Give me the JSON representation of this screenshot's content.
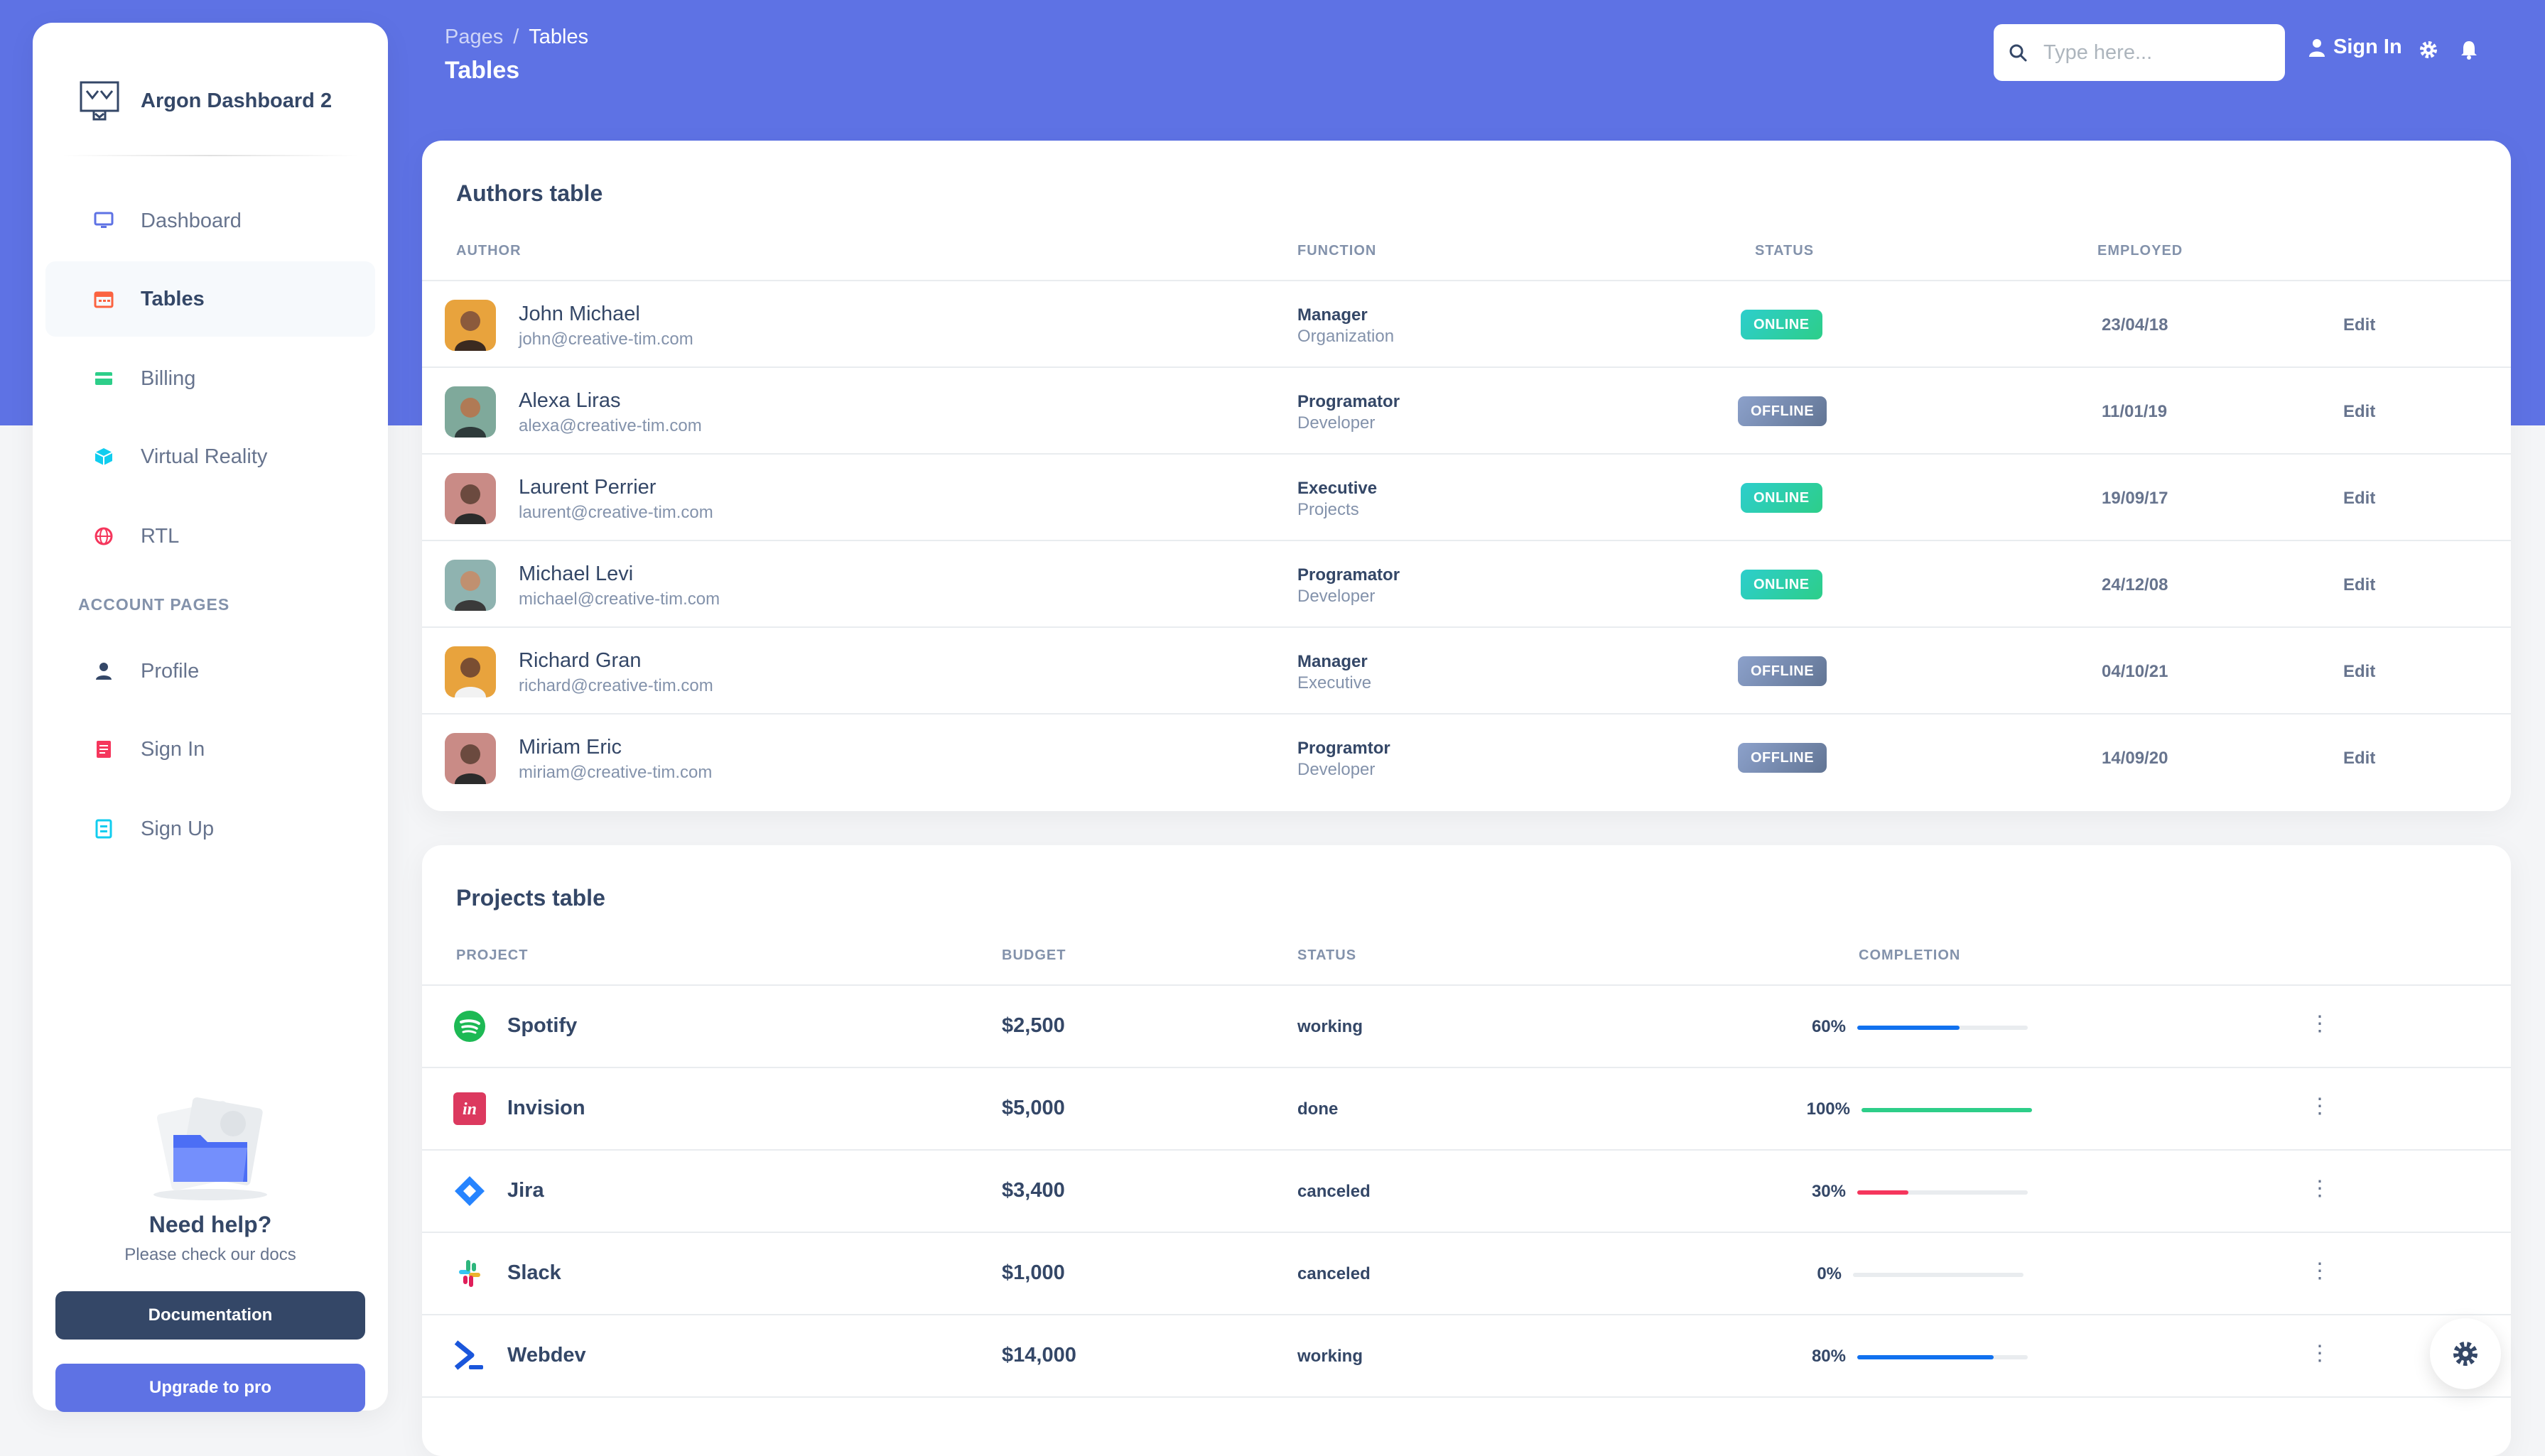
{
  "app": {
    "brand": "Argon Dashboard 2"
  },
  "sidebar": {
    "items": [
      {
        "label": "Dashboard",
        "icon": "monitor-icon"
      },
      {
        "label": "Tables",
        "icon": "calendar-icon"
      },
      {
        "label": "Billing",
        "icon": "credit-card-icon"
      },
      {
        "label": "Virtual Reality",
        "icon": "cube-icon"
      },
      {
        "label": "RTL",
        "icon": "globe-icon"
      }
    ],
    "section_title": "ACCOUNT PAGES",
    "account_items": [
      {
        "label": "Profile",
        "icon": "user-icon"
      },
      {
        "label": "Sign In",
        "icon": "document-icon"
      },
      {
        "label": "Sign Up",
        "icon": "signup-icon"
      }
    ],
    "help": {
      "title": "Need help?",
      "subtitle": "Please check our docs"
    },
    "documentation_label": "Documentation",
    "upgrade_label": "Upgrade to pro"
  },
  "header": {
    "breadcrumb_root": "Pages",
    "breadcrumb_sep": "/",
    "breadcrumb_current": "Tables",
    "title": "Tables",
    "search_placeholder": "Type here...",
    "signin_label": "Sign In"
  },
  "authors": {
    "title": "Authors table",
    "columns": [
      "AUTHOR",
      "FUNCTION",
      "STATUS",
      "EMPLOYED"
    ],
    "rows": [
      {
        "name": "John Michael",
        "email": "john@creative-tim.com",
        "function": "Manager",
        "dept": "Organization",
        "status": "ONLINE",
        "employed": "23/04/18",
        "action": "Edit"
      },
      {
        "name": "Alexa Liras",
        "email": "alexa@creative-tim.com",
        "function": "Programator",
        "dept": "Developer",
        "status": "OFFLINE",
        "employed": "11/01/19",
        "action": "Edit"
      },
      {
        "name": "Laurent Perrier",
        "email": "laurent@creative-tim.com",
        "function": "Executive",
        "dept": "Projects",
        "status": "ONLINE",
        "employed": "19/09/17",
        "action": "Edit"
      },
      {
        "name": "Michael Levi",
        "email": "michael@creative-tim.com",
        "function": "Programator",
        "dept": "Developer",
        "status": "ONLINE",
        "employed": "24/12/08",
        "action": "Edit"
      },
      {
        "name": "Richard Gran",
        "email": "richard@creative-tim.com",
        "function": "Manager",
        "dept": "Executive",
        "status": "OFFLINE",
        "employed": "04/10/21",
        "action": "Edit"
      },
      {
        "name": "Miriam Eric",
        "email": "miriam@creative-tim.com",
        "function": "Programtor",
        "dept": "Developer",
        "status": "OFFLINE",
        "employed": "14/09/20",
        "action": "Edit"
      }
    ]
  },
  "projects": {
    "title": "Projects table",
    "columns": [
      "PROJECT",
      "BUDGET",
      "STATUS",
      "COMPLETION"
    ],
    "rows": [
      {
        "name": "Spotify",
        "budget": "$2,500",
        "status": "working",
        "completion": 60,
        "completion_label": "60%",
        "icon": "spotify-icon",
        "color": "#1171ef"
      },
      {
        "name": "Invision",
        "budget": "$5,000",
        "status": "done",
        "completion": 100,
        "completion_label": "100%",
        "icon": "invision-icon",
        "color": "#2dce89"
      },
      {
        "name": "Jira",
        "budget": "$3,400",
        "status": "canceled",
        "completion": 30,
        "completion_label": "30%",
        "icon": "jira-icon",
        "color": "#f5365c"
      },
      {
        "name": "Slack",
        "budget": "$1,000",
        "status": "canceled",
        "completion": 0,
        "completion_label": "0%",
        "icon": "slack-icon",
        "color": "#1171ef"
      },
      {
        "name": "Webdev",
        "budget": "$14,000",
        "status": "working",
        "completion": 80,
        "completion_label": "80%",
        "icon": "webdev-icon",
        "color": "#1171ef"
      }
    ]
  },
  "colors": {
    "primary": "#5e72e4",
    "dark": "#344767",
    "online": "#2dce89",
    "offline": "#8392ab"
  }
}
